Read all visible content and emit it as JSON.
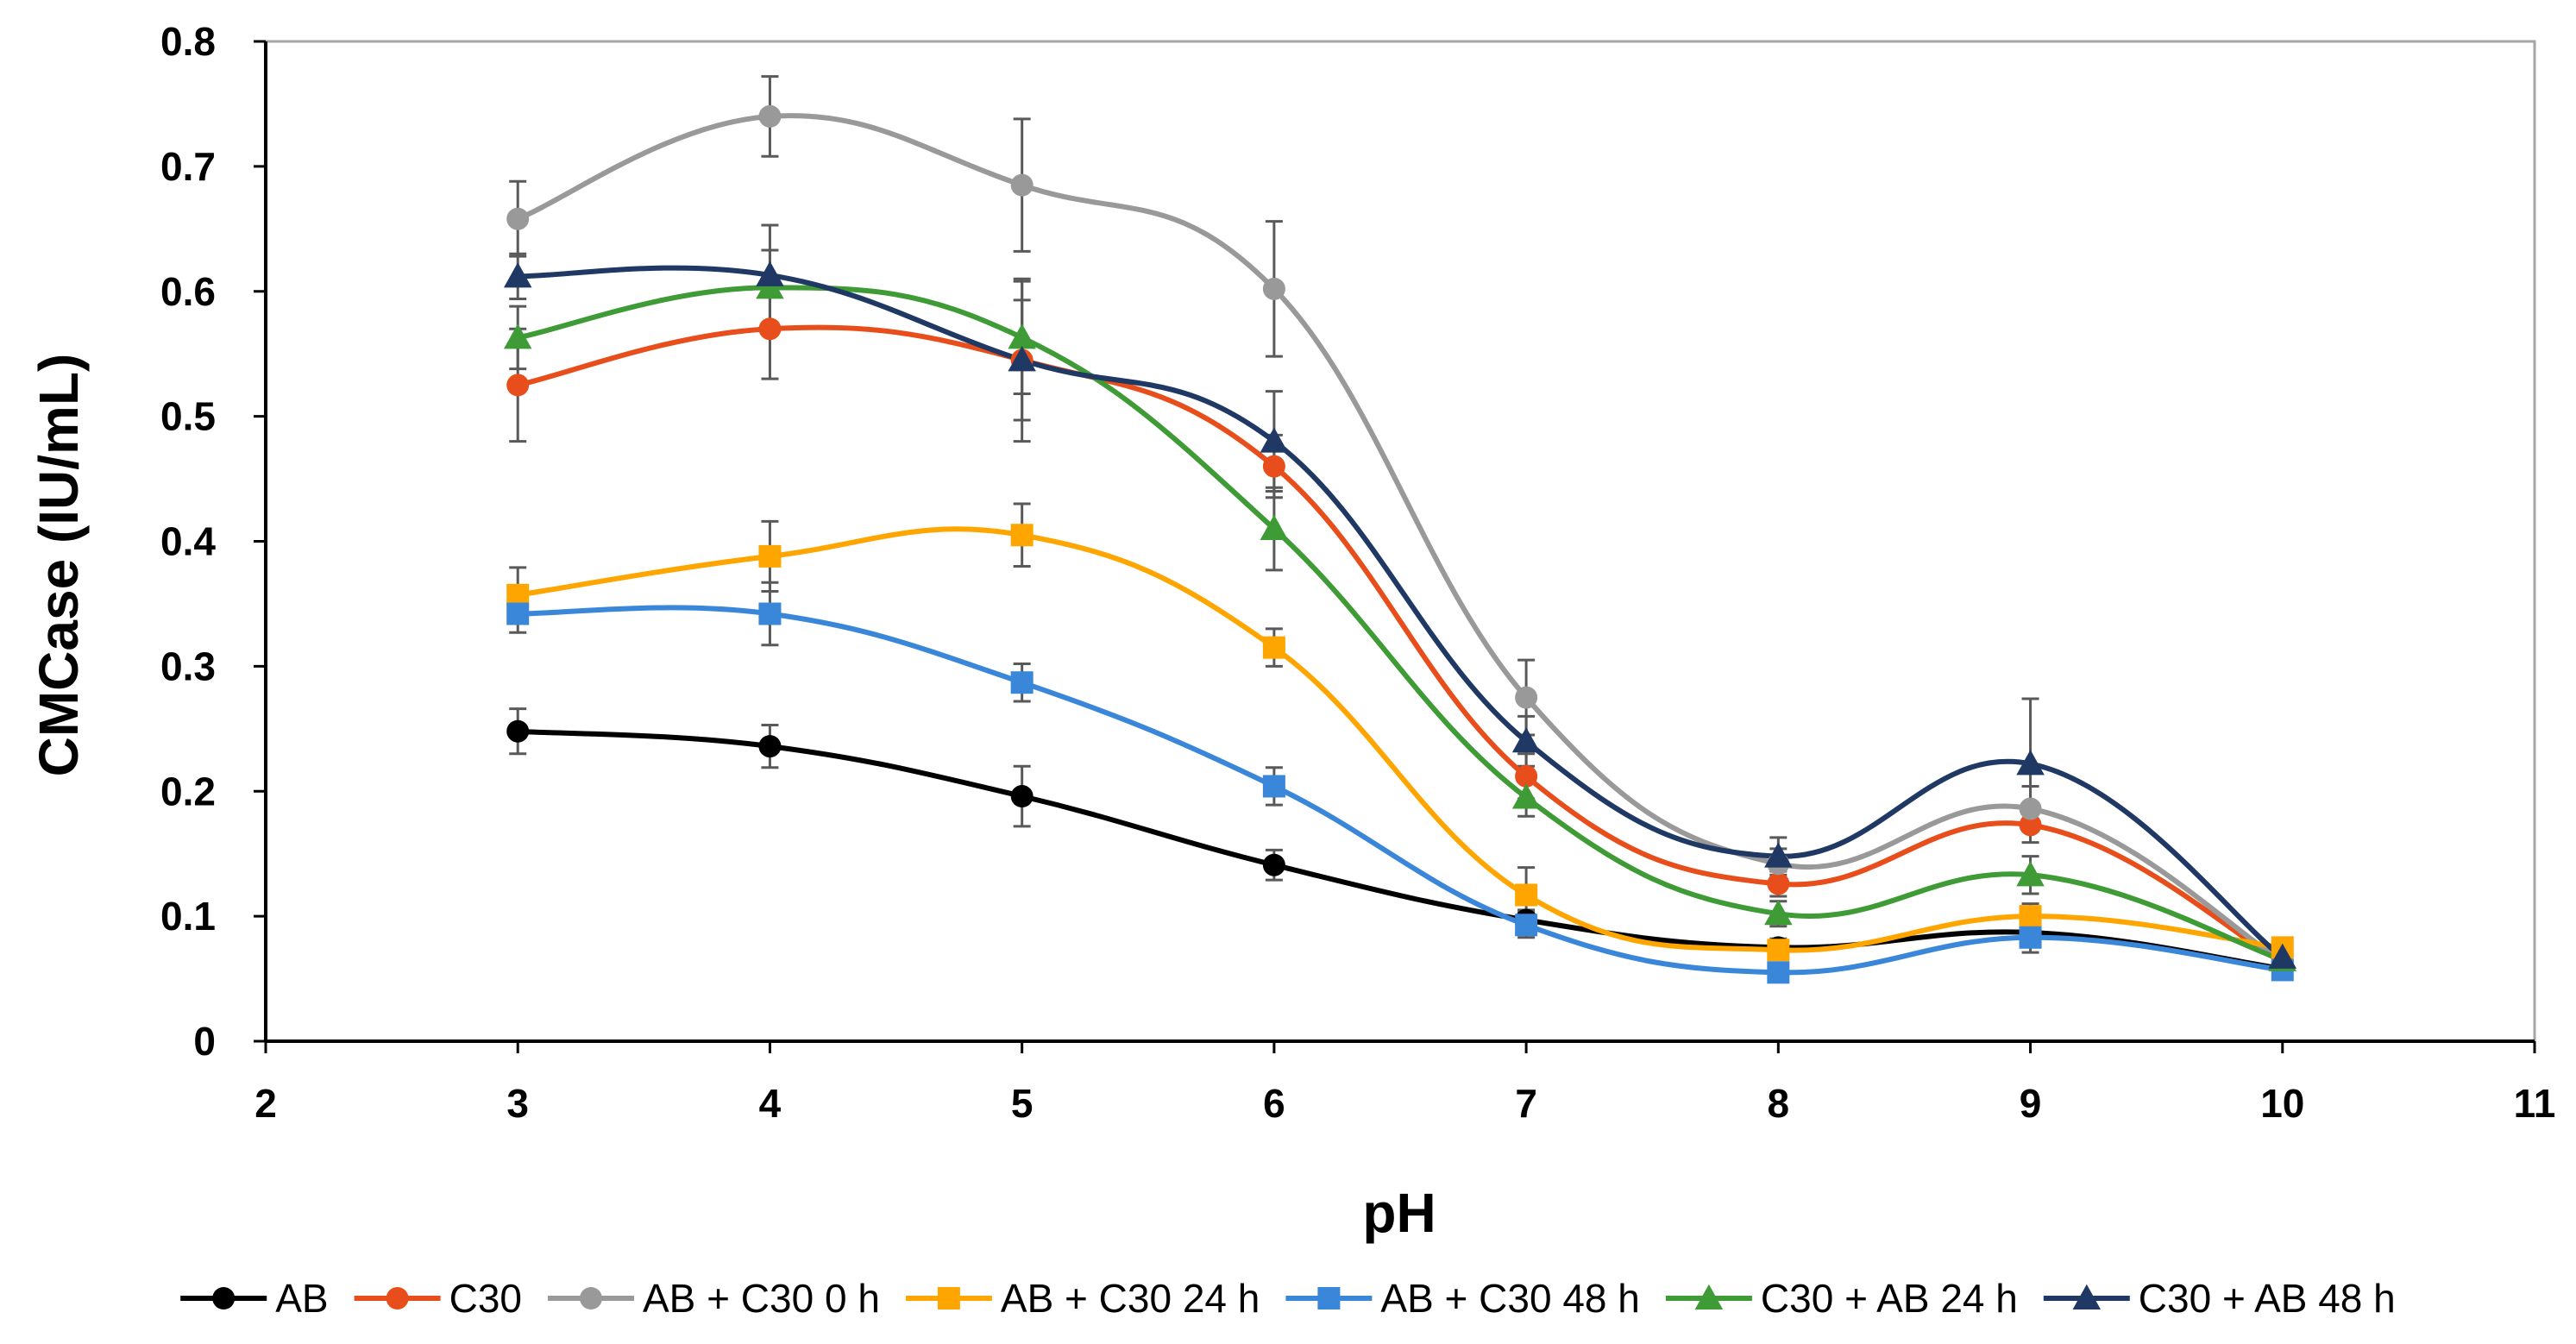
{
  "chart_data": {
    "type": "line",
    "title": "",
    "xlabel": "pH",
    "ylabel": "CMCase (IU/mL)",
    "xlim": [
      2,
      11
    ],
    "ylim": [
      0,
      0.8
    ],
    "x_ticks": [
      2,
      3,
      4,
      5,
      6,
      7,
      8,
      9,
      10,
      11
    ],
    "y_ticks": [
      0,
      0.1,
      0.2,
      0.3,
      0.4,
      0.5,
      0.6,
      0.7,
      0.8
    ],
    "x_tick_labels": [
      "2",
      "3",
      "4",
      "5",
      "6",
      "7",
      "8",
      "9",
      "10",
      "11"
    ],
    "y_tick_labels": [
      "0",
      "0.1",
      "0.2",
      "0.3",
      "0.4",
      "0.5",
      "0.6",
      "0.7",
      "0.8"
    ],
    "grid": false,
    "legend_position": "bottom",
    "x": [
      3,
      4,
      5,
      6,
      7,
      8,
      9,
      10
    ],
    "series": [
      {
        "name": "AB",
        "color": "#000000",
        "marker": "circle",
        "values": [
          0.248,
          0.236,
          0.196,
          0.141,
          0.097,
          0.075,
          0.087,
          0.058
        ],
        "errors": [
          0.018,
          0.017,
          0.024,
          0.012,
          0.008,
          0.007,
          0.008,
          0.005
        ]
      },
      {
        "name": "C30",
        "color": "#E84E1B",
        "marker": "circle",
        "values": [
          0.525,
          0.57,
          0.545,
          0.46,
          0.212,
          0.126,
          0.173,
          0.063
        ],
        "errors": [
          0.045,
          0.04,
          0.048,
          0.025,
          0.018,
          0.01,
          0.014,
          0.005
        ]
      },
      {
        "name": "AB + C30 0 h",
        "color": "#999999",
        "marker": "circle",
        "values": [
          0.658,
          0.74,
          0.685,
          0.602,
          0.275,
          0.142,
          0.186,
          0.064
        ],
        "errors": [
          0.03,
          0.032,
          0.053,
          0.054,
          0.03,
          0.012,
          0.018,
          0.005
        ]
      },
      {
        "name": "AB + C30 24 h",
        "color": "#FFA500",
        "marker": "square",
        "values": [
          0.357,
          0.388,
          0.405,
          0.315,
          0.117,
          0.073,
          0.1,
          0.075
        ],
        "errors": [
          0.022,
          0.028,
          0.025,
          0.015,
          0.022,
          0.007,
          0.01,
          0.005
        ]
      },
      {
        "name": "AB + C30 48 h",
        "color": "#3A87D9",
        "marker": "square",
        "values": [
          0.342,
          0.342,
          0.287,
          0.204,
          0.093,
          0.055,
          0.083,
          0.057
        ],
        "errors": [
          0.015,
          0.025,
          0.015,
          0.015,
          0.01,
          0.006,
          0.012,
          0.005
        ]
      },
      {
        "name": "C30 + AB 24 h",
        "color": "#3E9B35",
        "marker": "triangle",
        "values": [
          0.563,
          0.603,
          0.563,
          0.41,
          0.195,
          0.102,
          0.133,
          0.065
        ],
        "errors": [
          0.025,
          0.03,
          0.045,
          0.033,
          0.015,
          0.01,
          0.015,
          0.005
        ]
      },
      {
        "name": "C30 + AB 48 h",
        "color": "#1F3864",
        "marker": "triangle",
        "values": [
          0.612,
          0.613,
          0.545,
          0.48,
          0.24,
          0.148,
          0.222,
          0.067
        ],
        "errors": [
          0.018,
          0.04,
          0.065,
          0.04,
          0.02,
          0.015,
          0.052,
          0.005
        ]
      }
    ]
  }
}
